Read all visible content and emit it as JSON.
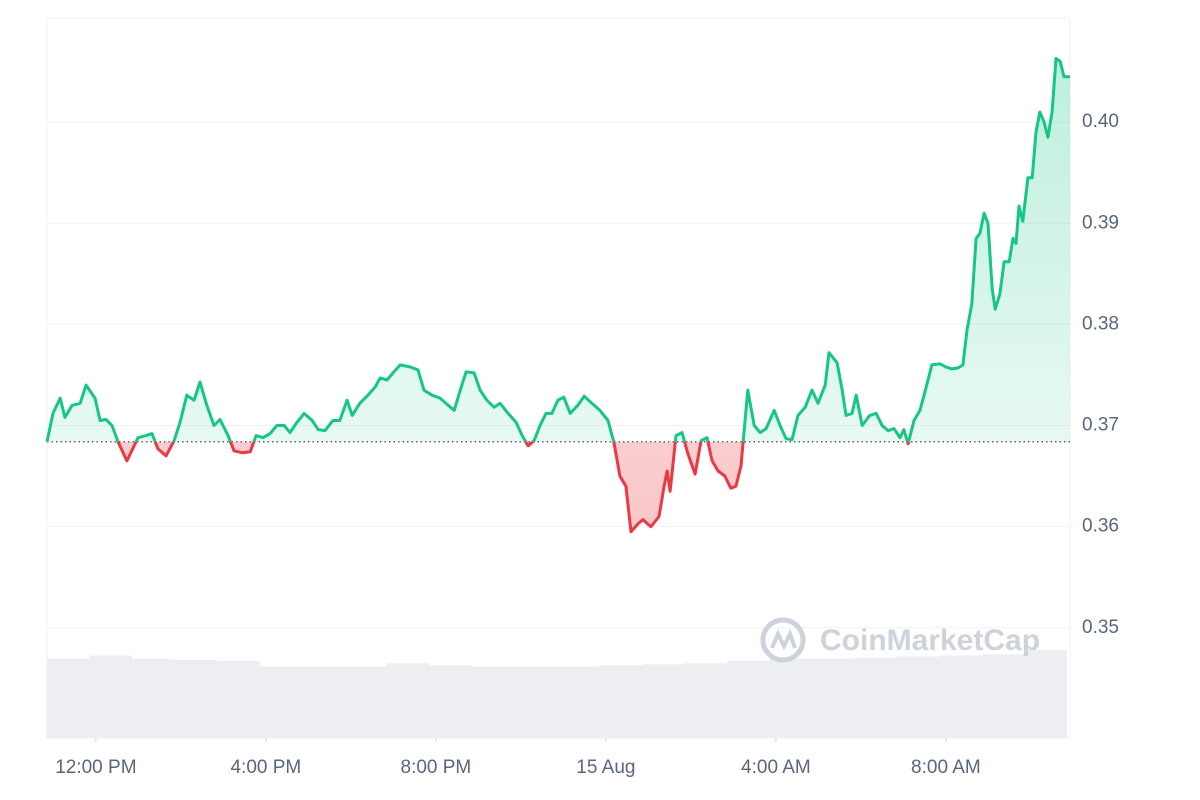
{
  "chart_data": {
    "type": "baseline-line",
    "x": [
      10.85,
      10.99,
      11.16,
      11.27,
      11.44,
      11.63,
      11.77,
      11.98,
      12.1,
      12.24,
      12.38,
      12.52,
      12.73,
      12.99,
      13.18,
      13.32,
      13.46,
      13.65,
      13.84,
      13.98,
      14.14,
      14.31,
      14.45,
      14.61,
      14.78,
      14.92,
      15.11,
      15.25,
      15.44,
      15.63,
      15.77,
      15.93,
      16.1,
      16.26,
      16.43,
      16.57,
      16.71,
      16.9,
      17.09,
      17.23,
      17.39,
      17.58,
      17.74,
      17.91,
      18.03,
      18.21,
      18.4,
      18.57,
      18.69,
      18.85,
      18.99,
      19.16,
      19.39,
      19.58,
      19.72,
      19.91,
      20.1,
      20.29,
      20.43,
      20.61,
      20.71,
      20.9,
      21.04,
      21.2,
      21.37,
      21.51,
      21.7,
      21.89,
      22.03,
      22.17,
      22.31,
      22.45,
      22.59,
      22.73,
      22.87,
      23.01,
      23.16,
      23.34,
      23.49,
      23.67,
      23.86,
      24.05,
      24.19,
      24.33,
      24.47,
      24.59,
      24.76,
      24.87,
      25.06,
      25.25,
      25.37,
      25.44,
      25.51,
      25.65,
      25.79,
      25.93,
      26.1,
      26.24,
      26.38,
      26.5,
      26.64,
      26.8,
      26.94,
      27.06,
      27.18,
      27.34,
      27.49,
      27.63,
      27.77,
      27.96,
      28.1,
      28.24,
      28.38,
      28.52,
      28.69,
      28.85,
      28.99,
      29.16,
      29.25,
      29.44,
      29.56,
      29.65,
      29.79,
      29.89,
      30.03,
      30.21,
      30.36,
      30.5,
      30.64,
      30.78,
      30.92,
      31.01,
      31.11,
      31.25,
      31.39,
      31.53,
      31.67,
      31.86,
      32.0,
      32.14,
      32.29,
      32.4,
      32.5,
      32.61,
      32.71,
      32.8,
      32.9,
      32.99,
      33.09,
      33.16,
      33.27,
      33.37,
      33.49,
      33.58,
      33.65,
      33.72,
      33.81,
      33.93,
      34.03,
      34.12,
      34.21,
      34.31,
      34.4,
      34.5,
      34.59,
      34.69,
      34.78,
      34.92
    ],
    "values": [
      0.3684,
      0.3712,
      0.3727,
      0.3708,
      0.372,
      0.3722,
      0.374,
      0.3727,
      0.3705,
      0.3706,
      0.37,
      0.3684,
      0.3665,
      0.3688,
      0.369,
      0.3692,
      0.3677,
      0.367,
      0.3685,
      0.3703,
      0.373,
      0.3725,
      0.3743,
      0.372,
      0.37,
      0.3706,
      0.369,
      0.3675,
      0.3673,
      0.3674,
      0.369,
      0.3688,
      0.3692,
      0.37,
      0.37,
      0.3693,
      0.3702,
      0.3712,
      0.3705,
      0.3696,
      0.3695,
      0.3705,
      0.3705,
      0.3725,
      0.371,
      0.3722,
      0.373,
      0.3738,
      0.3747,
      0.3745,
      0.3752,
      0.376,
      0.3758,
      0.3755,
      0.3735,
      0.373,
      0.3727,
      0.372,
      0.3715,
      0.374,
      0.3753,
      0.3752,
      0.3735,
      0.3725,
      0.3718,
      0.3722,
      0.3712,
      0.3703,
      0.369,
      0.368,
      0.3685,
      0.37,
      0.3712,
      0.3712,
      0.3725,
      0.3728,
      0.3712,
      0.372,
      0.3729,
      0.3722,
      0.3715,
      0.3705,
      0.3683,
      0.365,
      0.364,
      0.3595,
      0.3603,
      0.3607,
      0.36,
      0.361,
      0.364,
      0.3655,
      0.3635,
      0.369,
      0.3693,
      0.3672,
      0.3652,
      0.3685,
      0.3688,
      0.3665,
      0.3655,
      0.365,
      0.3638,
      0.364,
      0.366,
      0.3735,
      0.37,
      0.3693,
      0.3697,
      0.3715,
      0.37,
      0.3687,
      0.3686,
      0.371,
      0.3718,
      0.3735,
      0.3722,
      0.374,
      0.3772,
      0.3762,
      0.3735,
      0.371,
      0.3712,
      0.373,
      0.37,
      0.371,
      0.3712,
      0.37,
      0.3695,
      0.3697,
      0.3688,
      0.3696,
      0.3682,
      0.3705,
      0.3715,
      0.3737,
      0.376,
      0.3761,
      0.3758,
      0.3756,
      0.3757,
      0.376,
      0.3795,
      0.382,
      0.3885,
      0.389,
      0.391,
      0.39,
      0.3835,
      0.3815,
      0.383,
      0.3862,
      0.3862,
      0.3885,
      0.388,
      0.3917,
      0.3902,
      0.3945,
      0.3945,
      0.399,
      0.401,
      0.4,
      0.3985,
      0.401,
      0.4063,
      0.406,
      0.4045,
      0.4045
    ],
    "baseline": 0.3684,
    "colors": {
      "up": "#16c784",
      "down": "#ea3943",
      "volume": "#eceef2"
    },
    "xlim": [
      10.85,
      34.92
    ],
    "xticks": [
      {
        "value": 12,
        "label": "12:00 PM"
      },
      {
        "value": 16,
        "label": "4:00 PM"
      },
      {
        "value": 20,
        "label": "8:00 PM"
      },
      {
        "value": 24,
        "label": "15 Aug"
      },
      {
        "value": 28,
        "label": "4:00 AM"
      },
      {
        "value": 32,
        "label": "8:00 AM"
      }
    ],
    "ylim": [
      0.3391,
      0.4103
    ],
    "yticks": [
      0.35,
      0.36,
      0.37,
      0.38,
      0.39,
      {
        "value": 0.4,
        "label": "0.40"
      }
    ],
    "grid": true,
    "volume": {
      "x": [
        10.85,
        11.85,
        12.85,
        13.85,
        14.85,
        15.85,
        16.85,
        17.85,
        18.85,
        19.85,
        20.85,
        21.85,
        22.85,
        23.85,
        24.85,
        25.85,
        26.85,
        27.85,
        28.85,
        29.85,
        30.85,
        31.85,
        32.85,
        33.85
      ],
      "width": 1,
      "values": [
        72,
        75,
        72,
        71,
        70,
        65,
        65,
        65,
        68,
        66,
        65,
        65,
        65,
        66,
        67,
        68,
        70,
        72,
        72,
        73,
        74,
        75,
        76,
        80
      ],
      "ylim": [
        0,
        100
      ]
    },
    "watermark": "CoinMarketCap"
  }
}
